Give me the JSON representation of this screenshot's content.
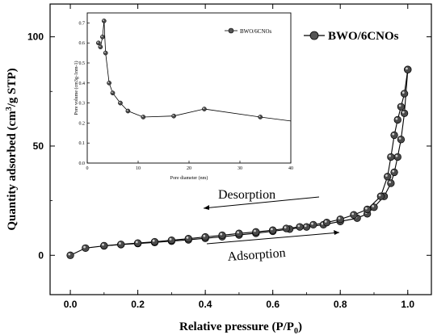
{
  "chart_data": [
    {
      "type": "line",
      "xlabel": "Relative pressure (P/P0)",
      "ylabel": "Quantity adsorbed (cm3/g STP)",
      "xlim": [
        -0.06,
        1.07
      ],
      "ylim": [
        -18,
        115
      ],
      "x_ticks": [
        0.0,
        0.2,
        0.4,
        0.6,
        0.8,
        1.0
      ],
      "x_tick_labels": [
        "0.0",
        "0.2",
        "0.4",
        "0.6",
        "0.8",
        "1.0"
      ],
      "y_ticks": [
        0,
        50,
        100
      ],
      "y_tick_labels": [
        "0",
        "50",
        "100"
      ],
      "legend": {
        "label": "BWO/6CNOs",
        "position": "top-right"
      },
      "annotations": [
        "Desorption",
        "Adsorption"
      ],
      "series": [
        {
          "name": "BWO/6CNOs",
          "branch": "adsorption",
          "x": [
            0.0,
            0.045,
            0.1,
            0.15,
            0.2,
            0.25,
            0.3,
            0.35,
            0.4,
            0.45,
            0.5,
            0.55,
            0.6,
            0.65,
            0.7,
            0.75,
            0.8,
            0.85,
            0.88,
            0.9,
            0.93,
            0.95,
            0.96,
            0.97,
            0.98,
            0.99,
            1.0
          ],
          "y": [
            0,
            3.3,
            4.3,
            4.9,
            5.4,
            5.9,
            6.5,
            7.1,
            7.8,
            8.5,
            9.3,
            10.1,
            11,
            12,
            13,
            14,
            15.5,
            17,
            19,
            22,
            27,
            33,
            38,
            45,
            53,
            65,
            85
          ]
        },
        {
          "name": "BWO/6CNOs",
          "branch": "desorption",
          "x": [
            1.0,
            0.99,
            0.98,
            0.97,
            0.96,
            0.95,
            0.94,
            0.92,
            0.88,
            0.84,
            0.8,
            0.76,
            0.72,
            0.68,
            0.64,
            0.6,
            0.55,
            0.5,
            0.45,
            0.4,
            0.35,
            0.3,
            0.25,
            0.2,
            0.15,
            0.1
          ],
          "y": [
            85,
            74,
            68,
            62,
            55,
            45,
            36,
            27,
            21,
            18.5,
            16.5,
            15,
            14,
            13,
            12.3,
            11.5,
            10.7,
            10,
            9.2,
            8.4,
            7.6,
            6.9,
            6.2,
            5.6,
            5.0,
            4.4
          ]
        }
      ]
    },
    {
      "type": "line",
      "xlabel": "Pore diameter (nm)",
      "ylabel": "Pore volume (cm3g-1nm-1)",
      "xlim": [
        0,
        40
      ],
      "ylim": [
        0,
        0.75
      ],
      "x_ticks": [
        0,
        10,
        20,
        30,
        40
      ],
      "x_tick_labels": [
        "0",
        "10",
        "20",
        "30",
        "40"
      ],
      "y_ticks": [
        0.0,
        0.1,
        0.2,
        0.3,
        0.4,
        0.5,
        0.6,
        0.7
      ],
      "y_tick_labels": [
        "0.0",
        "0.1",
        "0.2",
        "0.3",
        "0.4",
        "0.5",
        "0.6",
        "0.7"
      ],
      "legend": {
        "label": "BWO/6CNOs",
        "position": "top-right"
      },
      "series": [
        {
          "name": "BWO/6CNOs",
          "x": [
            2.2,
            2.6,
            3.0,
            3.3,
            3.6,
            4.3,
            5.0,
            6.5,
            8.0,
            11.0,
            17.0,
            23.0,
            34.0,
            40.0
          ],
          "y": [
            0.6,
            0.58,
            0.63,
            0.71,
            0.55,
            0.4,
            0.35,
            0.3,
            0.26,
            0.23,
            0.235,
            0.27,
            0.23,
            0.21
          ]
        }
      ]
    }
  ]
}
